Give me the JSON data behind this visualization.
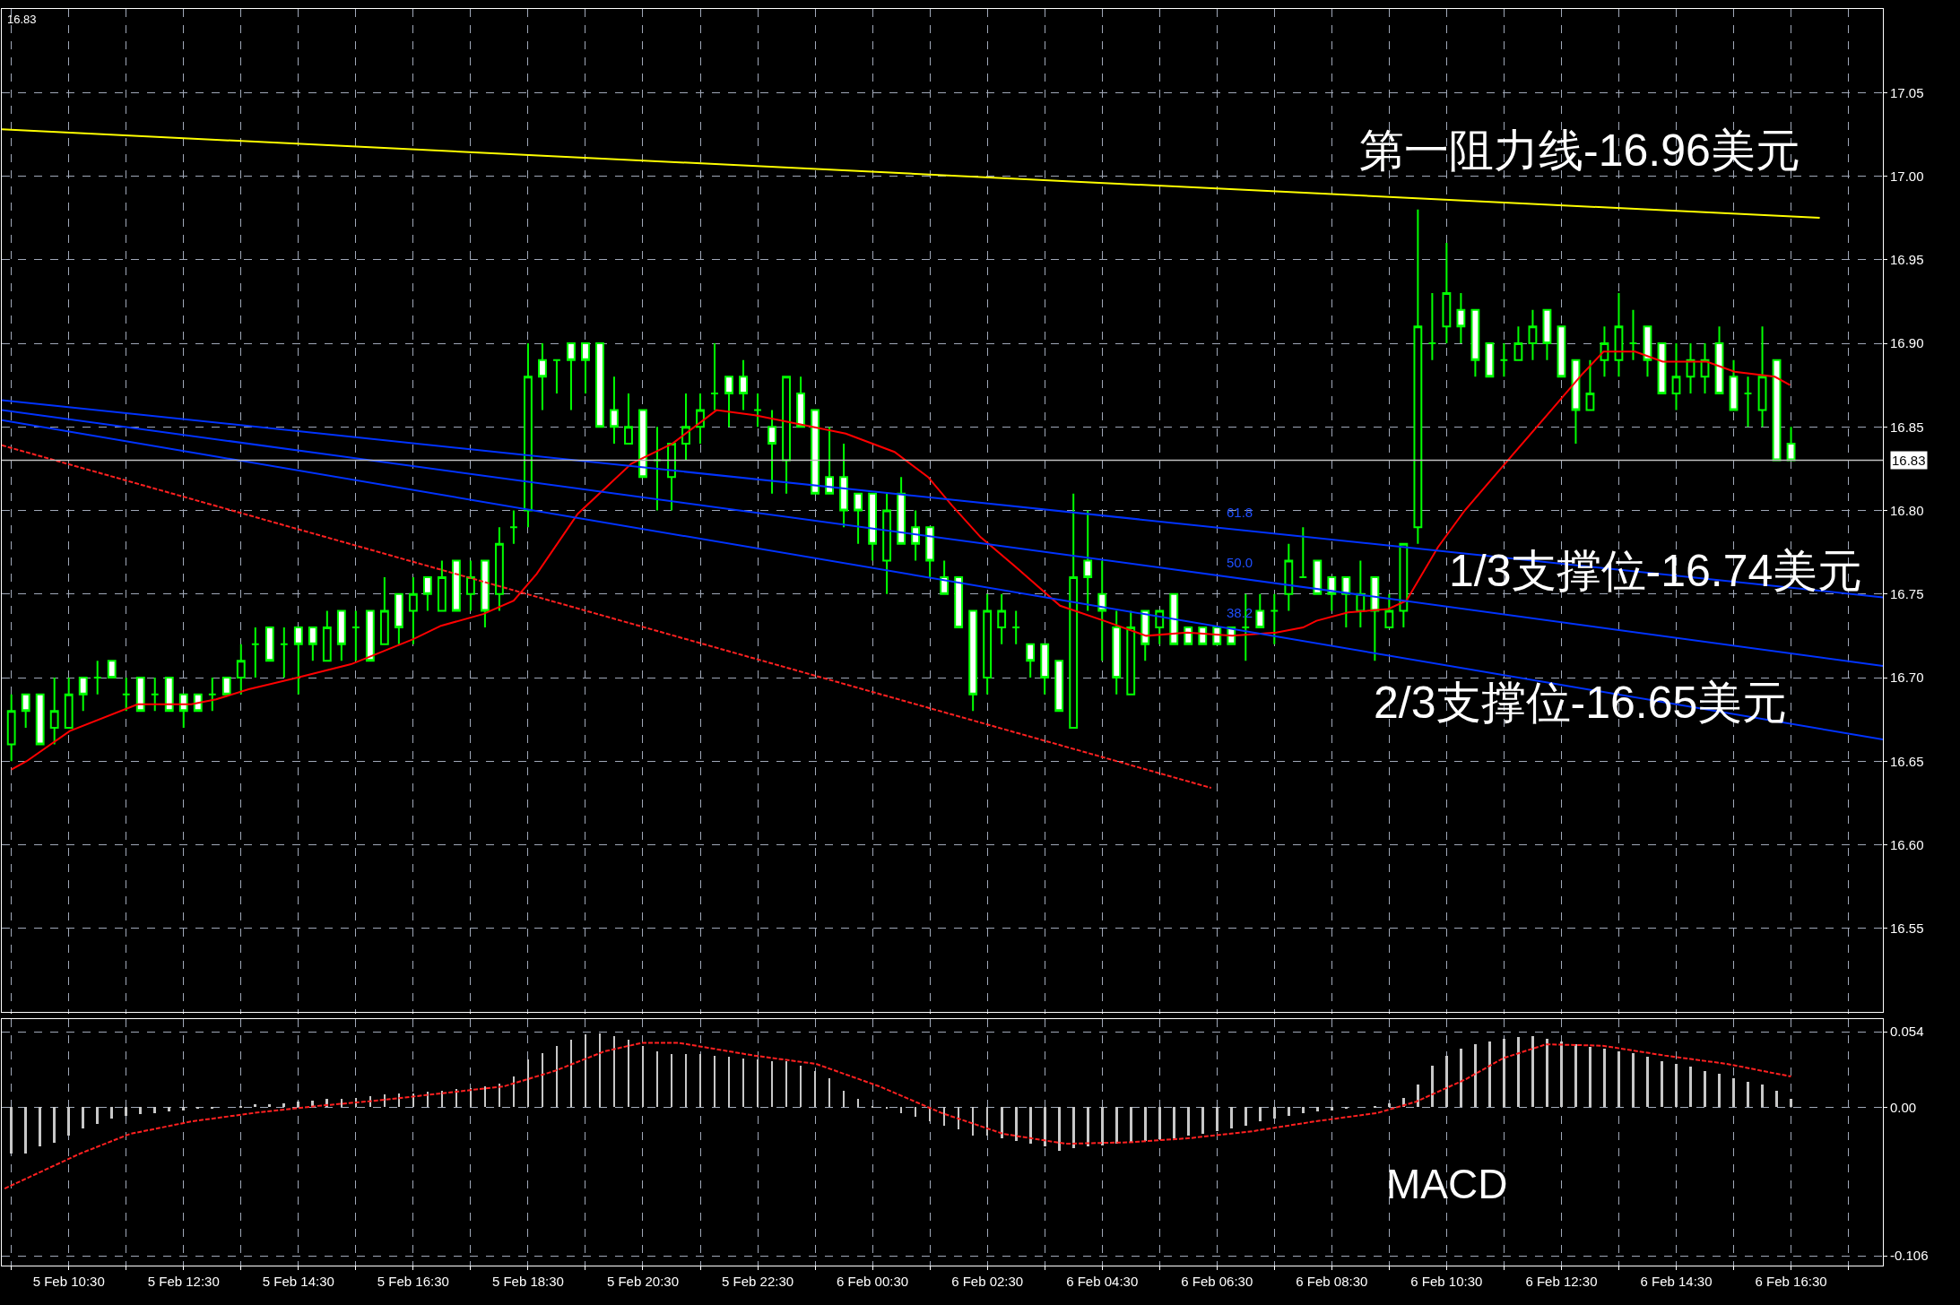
{
  "chart_data": [
    {
      "type": "candlestick",
      "grid": true,
      "tick_labels": "y",
      "xlim": [
        "--02-05T09:20",
        "--02-06T18:06"
      ],
      "xticks": [
        {
          "value": "--02-05T09:30",
          "label": null
        },
        {
          "value": "--02-05T10:30",
          "label": null
        },
        {
          "value": "--02-05T11:30",
          "label": null
        },
        {
          "value": "--02-05T12:30",
          "label": null
        },
        {
          "value": "--02-05T13:30",
          "label": null
        },
        {
          "value": "--02-05T14:30",
          "label": null
        },
        {
          "value": "--02-05T15:30",
          "label": null
        },
        {
          "value": "--02-05T16:30",
          "label": null
        },
        {
          "value": "--02-05T17:30",
          "label": null
        },
        {
          "value": "--02-05T18:30",
          "label": null
        },
        {
          "value": "--02-05T19:30",
          "label": null
        },
        {
          "value": "--02-05T20:30",
          "label": null
        },
        {
          "value": "--02-05T21:30",
          "label": null
        },
        {
          "value": "--02-05T22:30",
          "label": null
        },
        {
          "value": "--02-05T23:30",
          "label": null
        },
        {
          "value": "--02-06T00:30",
          "label": null
        },
        {
          "value": "--02-06T01:30",
          "label": null
        },
        {
          "value": "--02-06T02:30",
          "label": null
        },
        {
          "value": "--02-06T03:30",
          "label": null
        },
        {
          "value": "--02-06T04:30",
          "label": null
        },
        {
          "value": "--02-06T05:30",
          "label": null
        },
        {
          "value": "--02-06T06:30",
          "label": null
        },
        {
          "value": "--02-06T07:30",
          "label": null
        },
        {
          "value": "--02-06T08:30",
          "label": null
        },
        {
          "value": "--02-06T09:30",
          "label": null
        },
        {
          "value": "--02-06T10:30",
          "label": null
        },
        {
          "value": "--02-06T11:30",
          "label": null
        },
        {
          "value": "--02-06T12:30",
          "label": null
        },
        {
          "value": "--02-06T13:30",
          "label": null
        },
        {
          "value": "--02-06T14:30",
          "label": null
        },
        {
          "value": "--02-06T15:30",
          "label": null
        },
        {
          "value": "--02-06T16:30",
          "label": null
        },
        {
          "value": "--02-06T17:30",
          "label": null
        }
      ],
      "ylim": [
        16.5,
        17.1
      ],
      "yticks": [
        {
          "value": 16.55,
          "label": "16.55"
        },
        {
          "value": 16.6,
          "label": "16.60"
        },
        {
          "value": 16.65,
          "label": "16.65"
        },
        {
          "value": 16.7,
          "label": "16.70"
        },
        {
          "value": 16.75,
          "label": "16.75"
        },
        {
          "value": 16.8,
          "label": "16.80"
        },
        {
          "value": 16.85,
          "label": "16.85"
        },
        {
          "value": 16.9,
          "label": "16.90"
        },
        {
          "value": 16.95,
          "label": "16.95"
        },
        {
          "value": 17.0,
          "label": "17.00"
        },
        {
          "value": 17.05,
          "label": "17.05"
        }
      ],
      "x": [
        "--02-05T09:30",
        "--02-05T09:45",
        "--02-05T10:00",
        "--02-05T10:15",
        "--02-05T10:30",
        "--02-05T10:45",
        "--02-05T11:00",
        "--02-05T11:15",
        "--02-05T11:30",
        "--02-05T11:45",
        "--02-05T12:00",
        "--02-05T12:15",
        "--02-05T12:30",
        "--02-05T12:45",
        "--02-05T13:00",
        "--02-05T13:15",
        "--02-05T13:30",
        "--02-05T13:45",
        "--02-05T14:00",
        "--02-05T14:15",
        "--02-05T14:30",
        "--02-05T14:45",
        "--02-05T15:00",
        "--02-05T15:15",
        "--02-05T15:30",
        "--02-05T15:45",
        "--02-05T16:00",
        "--02-05T16:15",
        "--02-05T16:30",
        "--02-05T16:45",
        "--02-05T17:00",
        "--02-05T17:15",
        "--02-05T17:30",
        "--02-05T17:45",
        "--02-05T18:00",
        "--02-05T18:15",
        "--02-05T18:30",
        "--02-05T18:45",
        "--02-05T19:00",
        "--02-05T19:15",
        "--02-05T19:30",
        "--02-05T19:45",
        "--02-05T20:00",
        "--02-05T20:15",
        "--02-05T20:30",
        "--02-05T20:45",
        "--02-05T21:00",
        "--02-05T21:15",
        "--02-05T21:30",
        "--02-05T21:45",
        "--02-05T22:00",
        "--02-05T22:15",
        "--02-05T22:30",
        "--02-05T22:45",
        "--02-05T23:00",
        "--02-05T23:15",
        "--02-05T23:30",
        "--02-05T23:45",
        "--02-06T00:00",
        "--02-06T00:15",
        "--02-06T00:30",
        "--02-06T00:45",
        "--02-06T01:00",
        "--02-06T01:15",
        "--02-06T01:30",
        "--02-06T01:45",
        "--02-06T02:00",
        "--02-06T02:15",
        "--02-06T02:30",
        "--02-06T02:45",
        "--02-06T03:00",
        "--02-06T03:15",
        "--02-06T03:30",
        "--02-06T03:45",
        "--02-06T04:00",
        "--02-06T04:15",
        "--02-06T04:30",
        "--02-06T04:45",
        "--02-06T05:00",
        "--02-06T05:15",
        "--02-06T05:30",
        "--02-06T05:45",
        "--02-06T06:00",
        "--02-06T06:15",
        "--02-06T06:30",
        "--02-06T06:45",
        "--02-06T07:00",
        "--02-06T07:15",
        "--02-06T07:30",
        "--02-06T07:45",
        "--02-06T08:00",
        "--02-06T08:15",
        "--02-06T08:30",
        "--02-06T08:45",
        "--02-06T09:00",
        "--02-06T09:15",
        "--02-06T09:30",
        "--02-06T09:45",
        "--02-06T10:00",
        "--02-06T10:15",
        "--02-06T10:30",
        "--02-06T10:45",
        "--02-06T11:00",
        "--02-06T11:15",
        "--02-06T11:30",
        "--02-06T11:45",
        "--02-06T12:00",
        "--02-06T12:15",
        "--02-06T12:30",
        "--02-06T12:45",
        "--02-06T13:00",
        "--02-06T13:15",
        "--02-06T13:30",
        "--02-06T13:45",
        "--02-06T14:00",
        "--02-06T14:15",
        "--02-06T14:30",
        "--02-06T14:45",
        "--02-06T15:00",
        "--02-06T15:15",
        "--02-06T15:30",
        "--02-06T15:45",
        "--02-06T16:00",
        "--02-06T16:15",
        "--02-06T16:30"
      ],
      "ohlc": [
        [
          16.66,
          16.69,
          16.65,
          16.68
        ],
        [
          16.69,
          16.69,
          16.67,
          16.68
        ],
        [
          16.69,
          16.69,
          16.66,
          16.66
        ],
        [
          16.67,
          16.7,
          16.66,
          16.68
        ],
        [
          16.67,
          16.7,
          16.67,
          16.69
        ],
        [
          16.7,
          16.7,
          16.68,
          16.69
        ],
        [
          16.7,
          16.71,
          16.69,
          16.7
        ],
        [
          16.71,
          16.71,
          16.7,
          16.7
        ],
        [
          16.69,
          16.7,
          16.68,
          16.69
        ],
        [
          16.7,
          16.7,
          16.68,
          16.68
        ],
        [
          16.69,
          16.7,
          16.68,
          16.69
        ],
        [
          16.7,
          16.7,
          16.68,
          16.68
        ],
        [
          16.69,
          16.69,
          16.67,
          16.68
        ],
        [
          16.69,
          16.69,
          16.68,
          16.68
        ],
        [
          16.69,
          16.7,
          16.68,
          16.69
        ],
        [
          16.7,
          16.7,
          16.69,
          16.69
        ],
        [
          16.7,
          16.72,
          16.69,
          16.71
        ],
        [
          16.72,
          16.73,
          16.7,
          16.72
        ],
        [
          16.73,
          16.73,
          16.71,
          16.71
        ],
        [
          16.72,
          16.73,
          16.7,
          16.72
        ],
        [
          16.73,
          16.73,
          16.69,
          16.72
        ],
        [
          16.73,
          16.73,
          16.71,
          16.72
        ],
        [
          16.71,
          16.74,
          16.71,
          16.73
        ],
        [
          16.74,
          16.74,
          16.71,
          16.72
        ],
        [
          16.73,
          16.74,
          16.71,
          16.73
        ],
        [
          16.74,
          16.74,
          16.71,
          16.71
        ],
        [
          16.72,
          16.76,
          16.72,
          16.74
        ],
        [
          16.75,
          16.75,
          16.72,
          16.73
        ],
        [
          16.74,
          16.76,
          16.72,
          16.75
        ],
        [
          16.76,
          16.76,
          16.74,
          16.75
        ],
        [
          16.74,
          16.77,
          16.74,
          16.76
        ],
        [
          16.77,
          16.77,
          16.74,
          16.74
        ],
        [
          16.75,
          16.77,
          16.74,
          16.76
        ],
        [
          16.77,
          16.77,
          16.73,
          16.74
        ],
        [
          16.75,
          16.79,
          16.74,
          16.78
        ],
        [
          16.79,
          16.8,
          16.78,
          16.79
        ],
        [
          16.8,
          16.9,
          16.79,
          16.88
        ],
        [
          16.89,
          16.9,
          16.86,
          16.88
        ],
        [
          16.89,
          16.89,
          16.87,
          16.89
        ],
        [
          16.9,
          16.9,
          16.86,
          16.89
        ],
        [
          16.9,
          16.9,
          16.87,
          16.89
        ],
        [
          16.9,
          16.9,
          16.85,
          16.85
        ],
        [
          16.86,
          16.88,
          16.84,
          16.85
        ],
        [
          16.84,
          16.87,
          16.84,
          16.85
        ],
        [
          16.86,
          16.86,
          16.82,
          16.82
        ],
        [
          16.83,
          16.85,
          16.8,
          16.83
        ],
        [
          16.82,
          16.84,
          16.8,
          16.84
        ],
        [
          16.84,
          16.87,
          16.83,
          16.85
        ],
        [
          16.85,
          16.87,
          16.84,
          16.86
        ],
        [
          16.87,
          16.9,
          16.86,
          16.87
        ],
        [
          16.88,
          16.88,
          16.85,
          16.87
        ],
        [
          16.88,
          16.89,
          16.86,
          16.87
        ],
        [
          16.86,
          16.87,
          16.85,
          16.86
        ],
        [
          16.85,
          16.86,
          16.81,
          16.84
        ],
        [
          16.83,
          16.88,
          16.81,
          16.88
        ],
        [
          16.87,
          16.88,
          16.85,
          16.85
        ],
        [
          16.86,
          16.86,
          16.81,
          16.81
        ],
        [
          16.82,
          16.85,
          16.81,
          16.81
        ],
        [
          16.82,
          16.84,
          16.79,
          16.8
        ],
        [
          16.81,
          16.81,
          16.78,
          16.8
        ],
        [
          16.81,
          16.81,
          16.77,
          16.78
        ],
        [
          16.77,
          16.81,
          16.75,
          16.8
        ],
        [
          16.81,
          16.82,
          16.78,
          16.78
        ],
        [
          16.79,
          16.8,
          16.77,
          16.78
        ],
        [
          16.79,
          16.79,
          16.76,
          16.77
        ],
        [
          16.76,
          16.77,
          16.75,
          16.75
        ],
        [
          16.76,
          16.76,
          16.73,
          16.73
        ],
        [
          16.74,
          16.74,
          16.68,
          16.69
        ],
        [
          16.7,
          16.75,
          16.69,
          16.74
        ],
        [
          16.73,
          16.75,
          16.72,
          16.74
        ],
        [
          16.73,
          16.74,
          16.72,
          16.73
        ],
        [
          16.72,
          16.72,
          16.7,
          16.71
        ],
        [
          16.72,
          16.72,
          16.69,
          16.7
        ],
        [
          16.71,
          16.71,
          16.68,
          16.68
        ],
        [
          16.67,
          16.81,
          16.67,
          16.76
        ],
        [
          16.77,
          16.8,
          16.74,
          16.76
        ],
        [
          16.75,
          16.77,
          16.71,
          16.74
        ],
        [
          16.73,
          16.74,
          16.69,
          16.7
        ],
        [
          16.69,
          16.74,
          16.69,
          16.73
        ],
        [
          16.74,
          16.74,
          16.71,
          16.72
        ],
        [
          16.73,
          16.74,
          16.72,
          16.74
        ],
        [
          16.75,
          16.75,
          16.72,
          16.72
        ],
        [
          16.73,
          16.73,
          16.72,
          16.72
        ],
        [
          16.73,
          16.73,
          16.72,
          16.72
        ],
        [
          16.73,
          16.73,
          16.72,
          16.72
        ],
        [
          16.73,
          16.73,
          16.72,
          16.72
        ],
        [
          16.73,
          16.75,
          16.71,
          16.73
        ],
        [
          16.74,
          16.75,
          16.73,
          16.73
        ],
        [
          16.74,
          16.75,
          16.72,
          16.74
        ],
        [
          16.75,
          16.78,
          16.74,
          16.77
        ],
        [
          16.76,
          16.79,
          16.76,
          16.76
        ],
        [
          16.77,
          16.77,
          16.75,
          16.75
        ],
        [
          16.76,
          16.76,
          16.74,
          16.75
        ],
        [
          16.76,
          16.76,
          16.73,
          16.75
        ],
        [
          16.74,
          16.77,
          16.73,
          16.75
        ],
        [
          16.76,
          16.76,
          16.71,
          16.74
        ],
        [
          16.73,
          16.75,
          16.73,
          16.74
        ],
        [
          16.74,
          16.78,
          16.73,
          16.78
        ],
        [
          16.79,
          16.98,
          16.78,
          16.91
        ],
        [
          16.9,
          16.93,
          16.89,
          16.9
        ],
        [
          16.91,
          16.96,
          16.9,
          16.93
        ],
        [
          16.92,
          16.93,
          16.9,
          16.91
        ],
        [
          16.92,
          16.92,
          16.88,
          16.89
        ],
        [
          16.9,
          16.9,
          16.88,
          16.88
        ],
        [
          16.89,
          16.9,
          16.88,
          16.89
        ],
        [
          16.89,
          16.91,
          16.89,
          16.9
        ],
        [
          16.9,
          16.92,
          16.89,
          16.91
        ],
        [
          16.92,
          16.92,
          16.89,
          16.9
        ],
        [
          16.91,
          16.91,
          16.88,
          16.88
        ],
        [
          16.89,
          16.89,
          16.84,
          16.86
        ],
        [
          16.86,
          16.89,
          16.86,
          16.87
        ],
        [
          16.89,
          16.91,
          16.88,
          16.9
        ],
        [
          16.89,
          16.93,
          16.88,
          16.91
        ],
        [
          16.9,
          16.92,
          16.89,
          16.9
        ],
        [
          16.91,
          16.91,
          16.88,
          16.89
        ],
        [
          16.9,
          16.9,
          16.87,
          16.87
        ],
        [
          16.87,
          16.9,
          16.86,
          16.88
        ],
        [
          16.88,
          16.9,
          16.87,
          16.89
        ],
        [
          16.88,
          16.9,
          16.87,
          16.89
        ],
        [
          16.9,
          16.91,
          16.87,
          16.87
        ],
        [
          16.88,
          16.89,
          16.86,
          16.86
        ],
        [
          16.87,
          16.88,
          16.85,
          16.87
        ],
        [
          16.86,
          16.91,
          16.85,
          16.88
        ],
        [
          16.89,
          16.89,
          16.83,
          16.83
        ],
        [
          16.84,
          16.85,
          16.83,
          16.83
        ]
      ],
      "series": [
        {
          "type": "line",
          "color": "#ff0000",
          "x": [
            "--02-05T09:30",
            "--02-05T09:46",
            "--02-05T10:31",
            "--02-05T11:42",
            "--02-05T12:38",
            "--02-05T13:04",
            "--02-05T13:38",
            "--02-05T14:29",
            "--02-05T15:25",
            "--02-05T16:30",
            "--02-05T16:59",
            "--02-05T17:43",
            "--02-05T18:15",
            "--02-05T18:39",
            "--02-05T19:22",
            "--02-05T20:18",
            "--02-05T21:01",
            "--02-05T21:47",
            "--02-05T22:27",
            "--02-05T23:10",
            "--02-06T00:02",
            "--02-06T00:53",
            "--02-06T01:28",
            "--02-06T01:53",
            "--02-06T02:23",
            "--02-06T02:58",
            "--02-06T03:46",
            "--02-06T04:32",
            "--02-06T05:16",
            "--02-06T05:59",
            "--02-06T06:46",
            "--02-06T07:32",
            "--02-06T08:00",
            "--02-06T08:14",
            "--02-06T08:47",
            "--02-06T09:29",
            "--02-06T09:48",
            "--02-06T10:21",
            "--02-06T10:49",
            "--02-06T11:31",
            "--02-06T12:18",
            "--02-06T12:51",
            "--02-06T13:14",
            "--02-06T13:47",
            "--02-06T14:16",
            "--02-06T15:02",
            "--02-06T15:31",
            "--02-06T16:13",
            "--02-06T16:29"
          ],
          "values": [
            16.645,
            16.65,
            16.668,
            16.684,
            16.684,
            16.687,
            16.693,
            16.7,
            16.708,
            16.723,
            16.731,
            16.738,
            16.746,
            16.762,
            16.798,
            16.828,
            16.84,
            16.86,
            16.857,
            16.852,
            16.846,
            16.835,
            16.82,
            16.803,
            16.784,
            16.767,
            16.743,
            16.734,
            16.725,
            16.727,
            16.725,
            16.727,
            16.73,
            16.734,
            16.739,
            16.741,
            16.746,
            16.778,
            16.8,
            16.828,
            16.859,
            16.881,
            16.895,
            16.895,
            16.889,
            16.889,
            16.883,
            16.88,
            16.875
          ]
        },
        {
          "type": "line",
          "color": "#ffff00",
          "x": [
            "--02-05T09:20",
            "--02-06T17:00"
          ],
          "values": [
            17.028,
            16.975
          ]
        },
        {
          "type": "line",
          "color": "#0033ff",
          "x": [
            "--02-05T09:20",
            "--02-06T18:06"
          ],
          "values": [
            16.866,
            16.748
          ]
        },
        {
          "type": "line",
          "color": "#0033ff",
          "x": [
            "--02-05T09:20",
            "--02-06T18:06"
          ],
          "values": [
            16.86,
            16.707
          ]
        },
        {
          "type": "line",
          "color": "#0033ff",
          "x": [
            "--02-05T09:20",
            "--02-06T18:06"
          ],
          "values": [
            16.854,
            16.663
          ]
        },
        {
          "type": "line",
          "color": "#ff2020",
          "line_style": "dashed",
          "x": [
            "--02-05T09:20",
            "--02-06T06:24"
          ],
          "values": [
            16.839,
            16.634
          ]
        }
      ],
      "ref_lines": [
        {
          "axis": "y",
          "value": 16.83,
          "label": "16.83",
          "color": "#c0c0c0"
        }
      ],
      "annotations": [
        "16.83",
        "第一阻力线-16.96美元",
        "1/3支撑位-16.74美元",
        "2/3支撑位-16.65美元",
        "61.8",
        "50.0",
        "38.2"
      ]
    },
    {
      "type": "bar",
      "grid": true,
      "xlim": [
        "--02-05T09:20",
        "--02-06T18:06"
      ],
      "xticks": [
        {
          "value": "--02-05T09:30",
          "label": null
        },
        {
          "value": "--02-05T10:30",
          "label": "5 Feb 10:30"
        },
        {
          "value": "--02-05T11:30",
          "label": null
        },
        {
          "value": "--02-05T12:30",
          "label": "5 Feb 12:30"
        },
        {
          "value": "--02-05T13:30",
          "label": null
        },
        {
          "value": "--02-05T14:30",
          "label": "5 Feb 14:30"
        },
        {
          "value": "--02-05T15:30",
          "label": null
        },
        {
          "value": "--02-05T16:30",
          "label": "5 Feb 16:30"
        },
        {
          "value": "--02-05T17:30",
          "label": null
        },
        {
          "value": "--02-05T18:30",
          "label": "5 Feb 18:30"
        },
        {
          "value": "--02-05T19:30",
          "label": null
        },
        {
          "value": "--02-05T20:30",
          "label": "5 Feb 20:30"
        },
        {
          "value": "--02-05T21:30",
          "label": null
        },
        {
          "value": "--02-05T22:30",
          "label": "5 Feb 22:30"
        },
        {
          "value": "--02-05T23:30",
          "label": null
        },
        {
          "value": "--02-06T00:30",
          "label": "6 Feb 00:30"
        },
        {
          "value": "--02-06T01:30",
          "label": null
        },
        {
          "value": "--02-06T02:30",
          "label": "6 Feb 02:30"
        },
        {
          "value": "--02-06T03:30",
          "label": null
        },
        {
          "value": "--02-06T04:30",
          "label": "6 Feb 04:30"
        },
        {
          "value": "--02-06T05:30",
          "label": null
        },
        {
          "value": "--02-06T06:30",
          "label": "6 Feb 06:30"
        },
        {
          "value": "--02-06T07:30",
          "label": null
        },
        {
          "value": "--02-06T08:30",
          "label": "6 Feb 08:30"
        },
        {
          "value": "--02-06T09:30",
          "label": null
        },
        {
          "value": "--02-06T10:30",
          "label": "6 Feb 10:30"
        },
        {
          "value": "--02-06T11:30",
          "label": null
        },
        {
          "value": "--02-06T12:30",
          "label": "6 Feb 12:30"
        },
        {
          "value": "--02-06T13:30",
          "label": null
        },
        {
          "value": "--02-06T14:30",
          "label": "6 Feb 14:30"
        },
        {
          "value": "--02-06T15:30",
          "label": null
        },
        {
          "value": "--02-06T16:30",
          "label": "6 Feb 16:30"
        },
        {
          "value": "--02-06T17:30",
          "label": null
        }
      ],
      "ylim": [
        -0.113,
        0.063
      ],
      "yticks": [
        {
          "value": -0.106,
          "label": "-0.106"
        },
        {
          "value": 0,
          "label": "0.00"
        },
        {
          "value": 0.054,
          "label": "0.054"
        }
      ],
      "x": [
        "--02-05T09:30",
        "--02-05T09:45",
        "--02-05T10:00",
        "--02-05T10:15",
        "--02-05T10:30",
        "--02-05T10:45",
        "--02-05T11:00",
        "--02-05T11:15",
        "--02-05T11:30",
        "--02-05T11:45",
        "--02-05T12:00",
        "--02-05T12:15",
        "--02-05T12:30",
        "--02-05T12:45",
        "--02-05T13:00",
        "--02-05T13:15",
        "--02-05T13:30",
        "--02-05T13:45",
        "--02-05T14:00",
        "--02-05T14:15",
        "--02-05T14:30",
        "--02-05T14:45",
        "--02-05T15:00",
        "--02-05T15:15",
        "--02-05T15:30",
        "--02-05T15:45",
        "--02-05T16:00",
        "--02-05T16:15",
        "--02-05T16:30",
        "--02-05T16:45",
        "--02-05T17:00",
        "--02-05T17:15",
        "--02-05T17:30",
        "--02-05T17:45",
        "--02-05T18:00",
        "--02-05T18:15",
        "--02-05T18:30",
        "--02-05T18:45",
        "--02-05T19:00",
        "--02-05T19:15",
        "--02-05T19:30",
        "--02-05T19:45",
        "--02-05T20:00",
        "--02-05T20:15",
        "--02-05T20:30",
        "--02-05T20:45",
        "--02-05T21:00",
        "--02-05T21:15",
        "--02-05T21:30",
        "--02-05T21:45",
        "--02-05T22:00",
        "--02-05T22:15",
        "--02-05T22:30",
        "--02-05T22:45",
        "--02-05T23:00",
        "--02-05T23:15",
        "--02-05T23:30",
        "--02-05T23:45",
        "--02-06T00:00",
        "--02-06T00:15",
        "--02-06T00:30",
        "--02-06T00:45",
        "--02-06T01:00",
        "--02-06T01:15",
        "--02-06T01:30",
        "--02-06T01:45",
        "--02-06T02:00",
        "--02-06T02:15",
        "--02-06T02:30",
        "--02-06T02:45",
        "--02-06T03:00",
        "--02-06T03:15",
        "--02-06T03:30",
        "--02-06T03:45",
        "--02-06T04:00",
        "--02-06T04:15",
        "--02-06T04:30",
        "--02-06T04:45",
        "--02-06T05:00",
        "--02-06T05:15",
        "--02-06T05:30",
        "--02-06T05:45",
        "--02-06T06:00",
        "--02-06T06:15",
        "--02-06T06:30",
        "--02-06T06:45",
        "--02-06T07:00",
        "--02-06T07:15",
        "--02-06T07:30",
        "--02-06T07:45",
        "--02-06T08:00",
        "--02-06T08:15",
        "--02-06T08:30",
        "--02-06T08:45",
        "--02-06T09:00",
        "--02-06T09:15",
        "--02-06T09:30",
        "--02-06T09:45",
        "--02-06T10:00",
        "--02-06T10:15",
        "--02-06T10:30",
        "--02-06T10:45",
        "--02-06T11:00",
        "--02-06T11:15",
        "--02-06T11:30",
        "--02-06T11:45",
        "--02-06T12:00",
        "--02-06T12:15",
        "--02-06T12:30",
        "--02-06T12:45",
        "--02-06T13:00",
        "--02-06T13:15",
        "--02-06T13:30",
        "--02-06T13:45",
        "--02-06T14:00",
        "--02-06T14:15",
        "--02-06T14:30",
        "--02-06T14:45",
        "--02-06T15:00",
        "--02-06T15:15",
        "--02-06T15:30",
        "--02-06T15:45",
        "--02-06T16:00",
        "--02-06T16:15",
        "--02-06T16:30"
      ],
      "series": [
        {
          "color": "#c8c8c8",
          "values": [
            -0.033,
            -0.033,
            -0.028,
            -0.025,
            -0.02,
            -0.015,
            -0.012,
            -0.008,
            -0.006,
            -0.005,
            -0.004,
            -0.003,
            -0.002,
            -0.001,
            -0.001,
            0.0,
            0.001,
            0.002,
            0.002,
            0.003,
            0.004,
            0.005,
            0.006,
            0.006,
            0.007,
            0.008,
            0.009,
            0.01,
            0.01,
            0.011,
            0.012,
            0.013,
            0.014,
            0.015,
            0.017,
            0.022,
            0.034,
            0.039,
            0.044,
            0.048,
            0.052,
            0.053,
            0.051,
            0.048,
            0.044,
            0.04,
            0.038,
            0.038,
            0.038,
            0.037,
            0.036,
            0.035,
            0.034,
            0.033,
            0.033,
            0.03,
            0.026,
            0.021,
            0.012,
            0.006,
            0.001,
            -0.001,
            -0.004,
            -0.007,
            -0.01,
            -0.013,
            -0.016,
            -0.02,
            -0.02,
            -0.022,
            -0.024,
            -0.026,
            -0.028,
            -0.031,
            -0.029,
            -0.028,
            -0.027,
            -0.026,
            -0.025,
            -0.024,
            -0.023,
            -0.022,
            -0.02,
            -0.019,
            -0.017,
            -0.015,
            -0.013,
            -0.01,
            -0.008,
            -0.006,
            -0.004,
            -0.003,
            -0.002,
            -0.001,
            0.0,
            0.001,
            0.003,
            0.007,
            0.016,
            0.03,
            0.037,
            0.042,
            0.045,
            0.047,
            0.049,
            0.05,
            0.051,
            0.049,
            0.047,
            0.045,
            0.043,
            0.042,
            0.04,
            0.039,
            0.036,
            0.033,
            0.031,
            0.029,
            0.026,
            0.024,
            0.021,
            0.018,
            0.016,
            0.012,
            0.006
          ]
        },
        {
          "type": "line",
          "color": "#ff2020",
          "line_style": "dashed",
          "x": [
            "--02-05T09:23",
            "--02-05T10:42",
            "--02-05T11:34",
            "--02-05T12:39",
            "--02-05T13:44",
            "--02-05T14:50",
            "--02-05T15:55",
            "--02-05T17:00",
            "--02-05T18:05",
            "--02-05T18:58",
            "--02-05T19:50",
            "--02-05T20:29",
            "--02-05T21:08",
            "--02-05T22:26",
            "--02-05T23:31",
            "--02-06T00:37",
            "--02-06T01:42",
            "--02-06T02:47",
            "--02-06T03:52",
            "--02-06T04:58",
            "--02-06T06:02",
            "--02-06T07:08",
            "--02-06T08:13",
            "--02-06T09:18",
            "--02-06T09:58",
            "--02-06T10:50",
            "--02-06T11:29",
            "--02-06T12:14",
            "--02-06T13:13",
            "--02-06T14:18",
            "--02-06T15:23",
            "--02-06T16:30"
          ],
          "values": [
            -0.058,
            -0.033,
            -0.019,
            -0.01,
            -0.004,
            0.001,
            0.005,
            0.01,
            0.015,
            0.026,
            0.04,
            0.046,
            0.046,
            0.037,
            0.031,
            0.015,
            -0.004,
            -0.019,
            -0.026,
            -0.025,
            -0.022,
            -0.017,
            -0.01,
            -0.004,
            0.004,
            0.02,
            0.035,
            0.045,
            0.044,
            0.037,
            0.031,
            0.022
          ]
        }
      ],
      "annotations": [
        "MACD"
      ]
    }
  ]
}
